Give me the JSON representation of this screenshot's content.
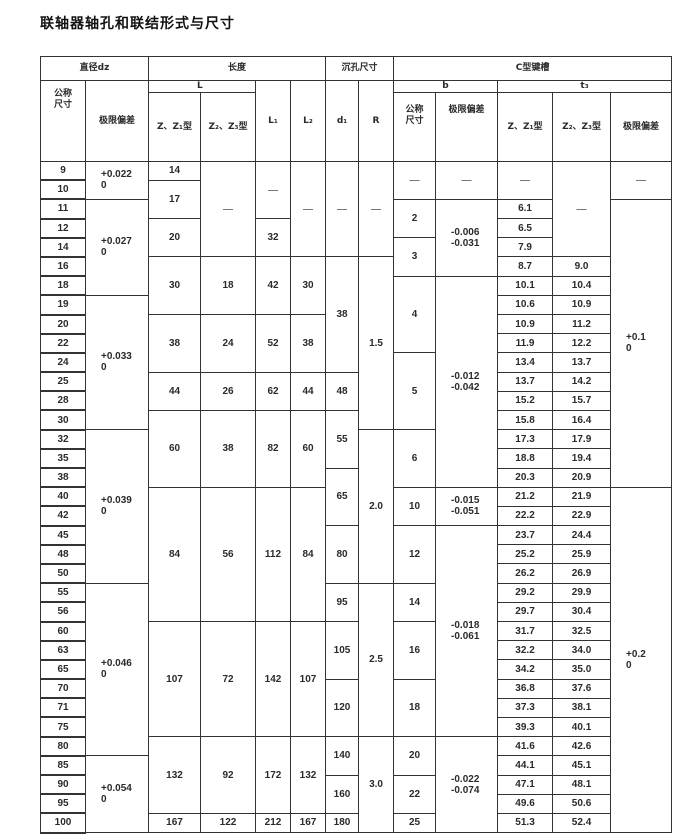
{
  "title": "联轴器轴孔和联结形式与尺寸",
  "header": {
    "diameter": "直径dz",
    "length": "长度",
    "counterbore": "沉孔尺寸",
    "keyway": "C型键槽",
    "nominal_size": "公称\n尺寸",
    "limit_deviation": "极限偏差",
    "L": "L",
    "L_z_z1": "Z、Z₁型",
    "L_z2_z3": "Z₂、Z₃型",
    "L1": "L₁",
    "L2": "L₂",
    "d1": "d₁",
    "R": "R",
    "b": "b",
    "t3": "t₃",
    "b_nominal": "公称\n尺寸",
    "b_limit_deviation": "极限偏差",
    "t3_z_z1": "Z、Z₁型",
    "t3_z2_z3": "Z₂、Z₃型",
    "t3_limit_deviation": "极限偏差"
  },
  "table": {
    "column_order": [
      "dz_nominal",
      "dz_tol",
      "L_z_z1",
      "L_z2_z3",
      "L1",
      "L2",
      "d1",
      "R",
      "b_nominal",
      "b_tol",
      "t3_z_z1",
      "t3_z2_z3",
      "t3_tol"
    ],
    "columns": {
      "dz_nominal": [
        {
          "v": "9",
          "span": 1
        },
        {
          "v": "10",
          "span": 1
        },
        {
          "v": "11",
          "span": 1
        },
        {
          "v": "12",
          "span": 1
        },
        {
          "v": "14",
          "span": 1
        },
        {
          "v": "16",
          "span": 1
        },
        {
          "v": "18",
          "span": 1
        },
        {
          "v": "19",
          "span": 1
        },
        {
          "v": "20",
          "span": 1
        },
        {
          "v": "22",
          "span": 1
        },
        {
          "v": "24",
          "span": 1
        },
        {
          "v": "25",
          "span": 1
        },
        {
          "v": "28",
          "span": 1
        },
        {
          "v": "30",
          "span": 1
        },
        {
          "v": "32",
          "span": 1
        },
        {
          "v": "35",
          "span": 1
        },
        {
          "v": "38",
          "span": 1
        },
        {
          "v": "40",
          "span": 1
        },
        {
          "v": "42",
          "span": 1
        },
        {
          "v": "45",
          "span": 1
        },
        {
          "v": "48",
          "span": 1
        },
        {
          "v": "50",
          "span": 1
        },
        {
          "v": "55",
          "span": 1
        },
        {
          "v": "56",
          "span": 1
        },
        {
          "v": "60",
          "span": 1
        },
        {
          "v": "63",
          "span": 1
        },
        {
          "v": "65",
          "span": 1
        },
        {
          "v": "70",
          "span": 1
        },
        {
          "v": "71",
          "span": 1
        },
        {
          "v": "75",
          "span": 1
        },
        {
          "v": "80",
          "span": 1
        },
        {
          "v": "85",
          "span": 1
        },
        {
          "v": "90",
          "span": 1
        },
        {
          "v": "95",
          "span": 1
        },
        {
          "v": "100",
          "span": 1
        }
      ],
      "dz_tol": [
        {
          "v": "+0.022\n0",
          "span": 2
        },
        {
          "v": "+0.027\n0",
          "span": 5
        },
        {
          "v": "+0.033\n0",
          "span": 7
        },
        {
          "v": "+0.039\n0",
          "span": 8
        },
        {
          "v": "+0.046\n0",
          "span": 9
        },
        {
          "v": "+0.054\n0",
          "span": 4
        }
      ],
      "L_z_z1": [
        {
          "v": "14",
          "span": 1
        },
        {
          "v": "17",
          "span": 2
        },
        {
          "v": "20",
          "span": 2
        },
        {
          "v": "30",
          "span": 3
        },
        {
          "v": "38",
          "span": 3
        },
        {
          "v": "44",
          "span": 2
        },
        {
          "v": "60",
          "span": 4
        },
        {
          "v": "84",
          "span": 7
        },
        {
          "v": "107",
          "span": 6
        },
        {
          "v": "132",
          "span": 4
        },
        {
          "v": "167",
          "span": 1
        }
      ],
      "L_z2_z3": [
        {
          "v": "—",
          "span": 5
        },
        {
          "v": "18",
          "span": 3
        },
        {
          "v": "24",
          "span": 3
        },
        {
          "v": "26",
          "span": 2
        },
        {
          "v": "38",
          "span": 4
        },
        {
          "v": "56",
          "span": 7
        },
        {
          "v": "72",
          "span": 6
        },
        {
          "v": "92",
          "span": 4
        },
        {
          "v": "122",
          "span": 1
        }
      ],
      "L1": [
        {
          "v": "—",
          "span": 3
        },
        {
          "v": "32",
          "span": 2
        },
        {
          "v": "42",
          "span": 3
        },
        {
          "v": "52",
          "span": 3
        },
        {
          "v": "62",
          "span": 2
        },
        {
          "v": "82",
          "span": 4
        },
        {
          "v": "112",
          "span": 7
        },
        {
          "v": "142",
          "span": 6
        },
        {
          "v": "172",
          "span": 4
        },
        {
          "v": "212",
          "span": 1
        }
      ],
      "L2": [
        {
          "v": "—",
          "span": 5
        },
        {
          "v": "30",
          "span": 3
        },
        {
          "v": "38",
          "span": 3
        },
        {
          "v": "44",
          "span": 2
        },
        {
          "v": "60",
          "span": 4
        },
        {
          "v": "84",
          "span": 7
        },
        {
          "v": "107",
          "span": 6
        },
        {
          "v": "132",
          "span": 4
        },
        {
          "v": "167",
          "span": 1
        }
      ],
      "d1": [
        {
          "v": "—",
          "span": 5
        },
        {
          "v": "38",
          "span": 6
        },
        {
          "v": "48",
          "span": 2
        },
        {
          "v": "55",
          "span": 3
        },
        {
          "v": "65",
          "span": 3
        },
        {
          "v": "80",
          "span": 3
        },
        {
          "v": "95",
          "span": 2
        },
        {
          "v": "105",
          "span": 3
        },
        {
          "v": "120",
          "span": 3
        },
        {
          "v": "140",
          "span": 2
        },
        {
          "v": "160",
          "span": 2
        },
        {
          "v": "180",
          "span": 1
        }
      ],
      "R": [
        {
          "v": "—",
          "span": 5
        },
        {
          "v": "1.5",
          "span": 9
        },
        {
          "v": "2.0",
          "span": 8
        },
        {
          "v": "2.5",
          "span": 8
        },
        {
          "v": "3.0",
          "span": 5
        }
      ],
      "b_nominal": [
        {
          "v": "—",
          "span": 2
        },
        {
          "v": "2",
          "span": 2
        },
        {
          "v": "3",
          "span": 2
        },
        {
          "v": "4",
          "span": 4
        },
        {
          "v": "5",
          "span": 4
        },
        {
          "v": "6",
          "span": 3
        },
        {
          "v": "10",
          "span": 2
        },
        {
          "v": "12",
          "span": 3
        },
        {
          "v": "14",
          "span": 2
        },
        {
          "v": "16",
          "span": 3
        },
        {
          "v": "18",
          "span": 3
        },
        {
          "v": "20",
          "span": 2
        },
        {
          "v": "22",
          "span": 2
        },
        {
          "v": "25",
          "span": 1
        }
      ],
      "b_tol": [
        {
          "v": "—",
          "span": 2
        },
        {
          "v": "-0.006\n-0.031",
          "span": 4
        },
        {
          "v": "-0.012\n-0.042",
          "span": 11
        },
        {
          "v": "-0.015\n-0.051",
          "span": 2
        },
        {
          "v": "-0.018\n-0.061",
          "span": 11
        },
        {
          "v": "-0.022\n-0.074",
          "span": 5
        }
      ],
      "t3_z_z1": [
        {
          "v": "—",
          "span": 2
        },
        {
          "v": "6.1",
          "span": 1
        },
        {
          "v": "6.5",
          "span": 1
        },
        {
          "v": "7.9",
          "span": 1
        },
        {
          "v": "8.7",
          "span": 1
        },
        {
          "v": "10.1",
          "span": 1
        },
        {
          "v": "10.6",
          "span": 1
        },
        {
          "v": "10.9",
          "span": 1
        },
        {
          "v": "11.9",
          "span": 1
        },
        {
          "v": "13.4",
          "span": 1
        },
        {
          "v": "13.7",
          "span": 1
        },
        {
          "v": "15.2",
          "span": 1
        },
        {
          "v": "15.8",
          "span": 1
        },
        {
          "v": "17.3",
          "span": 1
        },
        {
          "v": "18.8",
          "span": 1
        },
        {
          "v": "20.3",
          "span": 1
        },
        {
          "v": "21.2",
          "span": 1
        },
        {
          "v": "22.2",
          "span": 1
        },
        {
          "v": "23.7",
          "span": 1
        },
        {
          "v": "25.2",
          "span": 1
        },
        {
          "v": "26.2",
          "span": 1
        },
        {
          "v": "29.2",
          "span": 1
        },
        {
          "v": "29.7",
          "span": 1
        },
        {
          "v": "31.7",
          "span": 1
        },
        {
          "v": "32.2",
          "span": 1
        },
        {
          "v": "34.2",
          "span": 1
        },
        {
          "v": "36.8",
          "span": 1
        },
        {
          "v": "37.3",
          "span": 1
        },
        {
          "v": "39.3",
          "span": 1
        },
        {
          "v": "41.6",
          "span": 1
        },
        {
          "v": "44.1",
          "span": 1
        },
        {
          "v": "47.1",
          "span": 1
        },
        {
          "v": "49.6",
          "span": 1
        },
        {
          "v": "51.3",
          "span": 1
        }
      ],
      "t3_z2_z3": [
        {
          "v": "—",
          "span": 5
        },
        {
          "v": "9.0",
          "span": 1
        },
        {
          "v": "10.4",
          "span": 1
        },
        {
          "v": "10.9",
          "span": 1
        },
        {
          "v": "11.2",
          "span": 1
        },
        {
          "v": "12.2",
          "span": 1
        },
        {
          "v": "13.7",
          "span": 1
        },
        {
          "v": "14.2",
          "span": 1
        },
        {
          "v": "15.7",
          "span": 1
        },
        {
          "v": "16.4",
          "span": 1
        },
        {
          "v": "17.9",
          "span": 1
        },
        {
          "v": "19.4",
          "span": 1
        },
        {
          "v": "20.9",
          "span": 1
        },
        {
          "v": "21.9",
          "span": 1
        },
        {
          "v": "22.9",
          "span": 1
        },
        {
          "v": "24.4",
          "span": 1
        },
        {
          "v": "25.9",
          "span": 1
        },
        {
          "v": "26.9",
          "span": 1
        },
        {
          "v": "29.9",
          "span": 1
        },
        {
          "v": "30.4",
          "span": 1
        },
        {
          "v": "32.5",
          "span": 1
        },
        {
          "v": "34.0",
          "span": 1
        },
        {
          "v": "35.0",
          "span": 1
        },
        {
          "v": "37.6",
          "span": 1
        },
        {
          "v": "38.1",
          "span": 1
        },
        {
          "v": "40.1",
          "span": 1
        },
        {
          "v": "42.6",
          "span": 1
        },
        {
          "v": "45.1",
          "span": 1
        },
        {
          "v": "48.1",
          "span": 1
        },
        {
          "v": "50.6",
          "span": 1
        },
        {
          "v": "52.4",
          "span": 1
        }
      ],
      "t3_tol": [
        {
          "v": "—",
          "span": 2
        },
        {
          "v": "+0.1\n0",
          "span": 15
        },
        {
          "v": "+0.2\n0",
          "span": 18
        }
      ]
    }
  }
}
